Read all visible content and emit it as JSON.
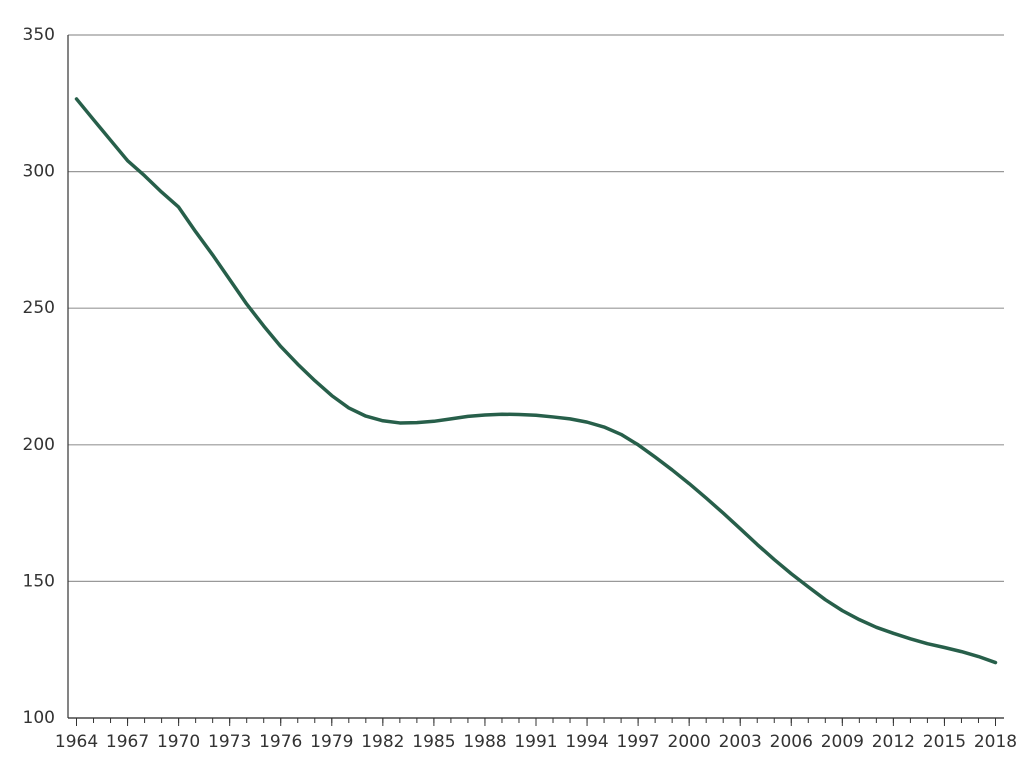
{
  "chart_data": {
    "type": "line",
    "x": [
      1964,
      1965,
      1966,
      1967,
      1968,
      1969,
      1970,
      1971,
      1972,
      1973,
      1974,
      1975,
      1976,
      1977,
      1978,
      1979,
      1980,
      1981,
      1982,
      1983,
      1984,
      1985,
      1986,
      1987,
      1988,
      1989,
      1990,
      1991,
      1992,
      1993,
      1994,
      1995,
      1996,
      1997,
      1998,
      1999,
      2000,
      2001,
      2002,
      2003,
      2004,
      2005,
      2006,
      2007,
      2008,
      2009,
      2010,
      2011,
      2012,
      2013,
      2014,
      2015,
      2016,
      2017,
      2018
    ],
    "series": [
      {
        "color": "#275f4a",
        "values": [
          326.6,
          319,
          311.5,
          304,
          298.5,
          292.5,
          287,
          278,
          269.5,
          260.5,
          251.5,
          243.5,
          236,
          229.5,
          223.5,
          218,
          213.5,
          210.5,
          208.8,
          208,
          208.1,
          208.6,
          209.5,
          210.4,
          210.9,
          211.2,
          211.1,
          210.8,
          210.2,
          209.5,
          208.3,
          206.5,
          203.8,
          200,
          195.5,
          190.8,
          185.8,
          180.5,
          175,
          169.3,
          163.5,
          158,
          152.8,
          148,
          143.3,
          139.3,
          136,
          133.2,
          131,
          129,
          127.2,
          125.8,
          124.3,
          122.5,
          120.3
        ]
      }
    ],
    "xlim": [
      1963.5,
      2018.5
    ],
    "xticks": [
      1964,
      1967,
      1970,
      1973,
      1976,
      1979,
      1982,
      1985,
      1988,
      1991,
      1994,
      1997,
      2000,
      2003,
      2006,
      2009,
      2012,
      2015,
      2018
    ],
    "ylim": [
      100,
      350
    ],
    "yticks": [
      100,
      150,
      200,
      250,
      300,
      350
    ],
    "grid": true
  }
}
